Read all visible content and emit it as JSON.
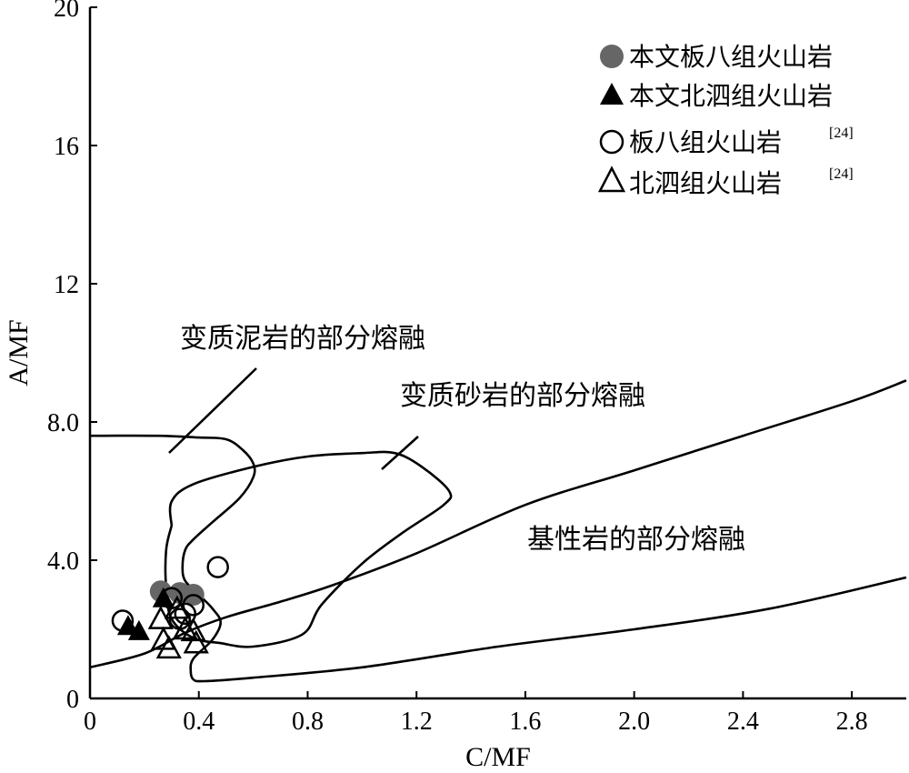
{
  "chart_data": {
    "type": "scatter",
    "xlabel": "C/MF",
    "ylabel": "A/MF",
    "xlim": [
      0,
      3.0
    ],
    "ylim": [
      0,
      20
    ],
    "x_ticks": [
      "0",
      "0.4",
      "0.8",
      "1.2",
      "1.6",
      "2.0",
      "2.4",
      "2.8"
    ],
    "x_tick_values": [
      0,
      0.4,
      0.8,
      1.2,
      1.6,
      2.0,
      2.4,
      2.8
    ],
    "y_ticks": [
      "0",
      "4.0",
      "8.0",
      "12",
      "16",
      "20"
    ],
    "y_tick_values": [
      0,
      4,
      8,
      12,
      16,
      20
    ],
    "grid": false,
    "legend_position": "top-right",
    "legend": [
      {
        "label": "本文板八组火山岩",
        "ref": "",
        "marker": "filled-circle",
        "color": "#666666"
      },
      {
        "label": "本文北泗组火山岩",
        "ref": "",
        "marker": "filled-triangle",
        "color": "#000000"
      },
      {
        "label": "板八组火山岩",
        "ref": "[24]",
        "marker": "open-circle",
        "color": "#000000"
      },
      {
        "label": "北泗组火山岩",
        "ref": "[24]",
        "marker": "open-triangle",
        "color": "#000000"
      }
    ],
    "fields": [
      {
        "label": "变质泥岩的部分熔融",
        "boundary": [
          [
            0,
            7.6
          ],
          [
            0.25,
            7.6
          ],
          [
            0.4,
            7.55
          ],
          [
            0.5,
            7.5
          ],
          [
            0.56,
            7.2
          ],
          [
            0.6,
            6.8
          ],
          [
            0.6,
            6.4
          ],
          [
            0.55,
            5.8
          ],
          [
            0.45,
            5.1
          ],
          [
            0.38,
            4.6
          ],
          [
            0.35,
            4.3
          ],
          [
            0.34,
            3.8
          ],
          [
            0.35,
            3.4
          ],
          [
            0.4,
            3.0
          ],
          [
            0.45,
            2.6
          ],
          [
            0.48,
            2.2
          ],
          [
            0.45,
            1.7
          ],
          [
            0.38,
            1.15
          ],
          [
            0.37,
            0.8
          ],
          [
            0.38,
            0.55
          ],
          [
            0.42,
            0.5
          ],
          [
            0.6,
            0.6
          ],
          [
            1.0,
            0.9
          ],
          [
            1.5,
            1.5
          ],
          [
            2.0,
            2.0
          ],
          [
            2.5,
            2.6
          ],
          [
            3.0,
            3.5
          ]
        ]
      },
      {
        "label": "变质砂岩的部分熔融",
        "boundary": [
          [
            0.3,
            5.0
          ],
          [
            0.3,
            5.7
          ],
          [
            0.38,
            6.2
          ],
          [
            0.6,
            6.7
          ],
          [
            0.8,
            7.0
          ],
          [
            1.0,
            7.1
          ],
          [
            1.12,
            7.1
          ],
          [
            1.22,
            6.7
          ],
          [
            1.32,
            6.0
          ],
          [
            1.3,
            5.6
          ],
          [
            1.15,
            4.8
          ],
          [
            1.0,
            3.9
          ],
          [
            0.85,
            2.7
          ],
          [
            0.78,
            1.85
          ],
          [
            0.6,
            1.5
          ],
          [
            0.48,
            1.6
          ],
          [
            0.38,
            1.75
          ],
          [
            0.3,
            2.3
          ],
          [
            0.28,
            3.2
          ],
          [
            0.28,
            4.3
          ],
          [
            0.3,
            5.0
          ]
        ]
      },
      {
        "label": "基性岩的部分熔融",
        "boundary": [
          [
            0,
            0.9
          ],
          [
            0.2,
            1.3
          ],
          [
            0.35,
            1.9
          ],
          [
            0.5,
            2.35
          ],
          [
            0.7,
            2.8
          ],
          [
            0.9,
            3.3
          ],
          [
            1.2,
            4.2
          ],
          [
            1.6,
            5.6
          ],
          [
            2.0,
            6.6
          ],
          [
            2.4,
            7.6
          ],
          [
            2.8,
            8.6
          ],
          [
            3.0,
            9.2
          ]
        ]
      }
    ],
    "annotations": [
      "变质泥岩的部分熔融",
      "变质砂岩的部分熔融",
      "基性岩的部分熔融"
    ],
    "series": [
      {
        "name": "本文板八组火山岩",
        "marker": "filled-circle",
        "color": "#666666",
        "points": [
          [
            0.26,
            3.1
          ],
          [
            0.33,
            3.05
          ],
          [
            0.38,
            3.0
          ]
        ]
      },
      {
        "name": "本文北泗组火山岩",
        "marker": "filled-triangle",
        "color": "#000000",
        "points": [
          [
            0.14,
            2.1
          ],
          [
            0.18,
            1.95
          ],
          [
            0.27,
            2.9
          ]
        ]
      },
      {
        "name": "板八组火山岩",
        "marker": "open-circle",
        "color": "#000000",
        "points": [
          [
            0.12,
            2.25
          ],
          [
            0.47,
            3.8
          ],
          [
            0.3,
            2.9
          ],
          [
            0.33,
            2.3
          ],
          [
            0.35,
            2.45
          ],
          [
            0.38,
            2.7
          ]
        ]
      },
      {
        "name": "北泗组火山岩",
        "marker": "open-triangle",
        "color": "#000000",
        "points": [
          [
            0.26,
            2.3
          ],
          [
            0.27,
            1.7
          ],
          [
            0.29,
            1.45
          ],
          [
            0.32,
            2.6
          ],
          [
            0.35,
            2.0
          ],
          [
            0.38,
            1.95
          ],
          [
            0.39,
            1.6
          ]
        ]
      }
    ]
  }
}
